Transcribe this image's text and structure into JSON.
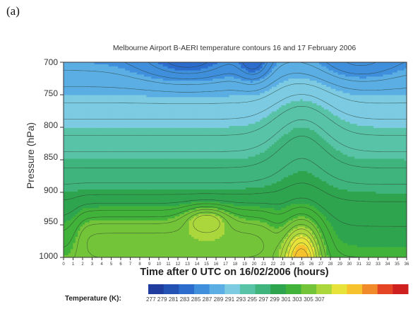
{
  "panel_label": "(a)",
  "chart_data": {
    "type": "heatmap",
    "title": "Melbourne Airport B-AERI temperature contours 16 and 17 February 2006",
    "xlabel": "Time after 0 UTC on 16/02/2006 (hours)",
    "ylabel": "Pressure (hPa)",
    "x_ticks": [
      0,
      1,
      2,
      3,
      4,
      5,
      6,
      7,
      8,
      9,
      10,
      11,
      12,
      13,
      14,
      15,
      16,
      17,
      18,
      19,
      20,
      21,
      22,
      23,
      24,
      25,
      26,
      27,
      28,
      29,
      30,
      31,
      32,
      33,
      34,
      35,
      36
    ],
    "xlim": [
      0,
      36
    ],
    "y_ticks": [
      700,
      750,
      800,
      850,
      900,
      950,
      1000
    ],
    "ylim": [
      1000,
      700
    ],
    "colorbar": {
      "label": "Temperature (K):",
      "values": [
        277,
        279,
        281,
        283,
        285,
        287,
        289,
        291,
        293,
        295,
        297,
        299,
        301,
        303,
        305,
        307
      ],
      "colors": [
        "#1f3c9e",
        "#2452b4",
        "#2c6ccc",
        "#3f8fdc",
        "#5aaee4",
        "#7ccbe2",
        "#58c3a6",
        "#3fb47c",
        "#2fa44e",
        "#41b23a",
        "#74c43a",
        "#abd63c",
        "#e8e33a",
        "#f6c22e",
        "#f08a2a",
        "#e64525",
        "#cf2020"
      ]
    },
    "grid": false,
    "legend": "bottom colorbar"
  }
}
